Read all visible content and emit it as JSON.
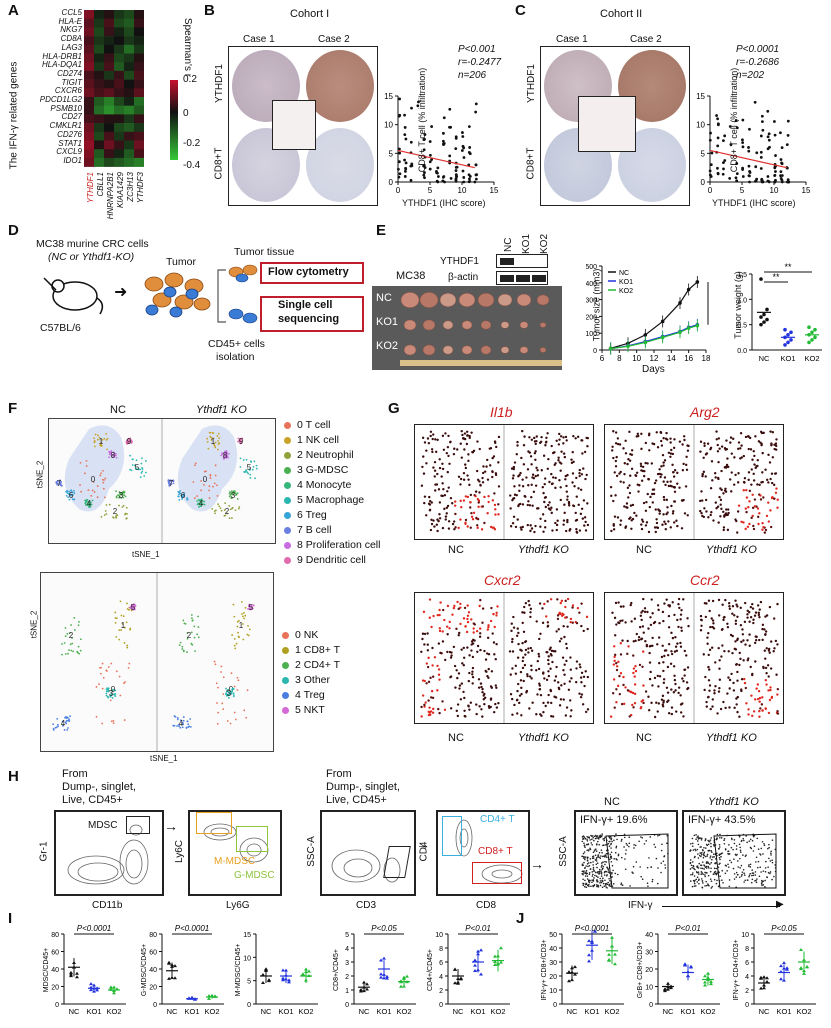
{
  "panels": {
    "A": "A",
    "B": "B",
    "C": "C",
    "D": "D",
    "E": "E",
    "F": "F",
    "G": "G",
    "H": "H",
    "I": "I",
    "J": "J"
  },
  "panelA": {
    "ylabel": "The IFN-γ related genes",
    "genes": [
      "CCL5",
      "HLA-E",
      "NKG7",
      "CD8A",
      "LAG3",
      "HLA-DRB1",
      "HLA-DQA1",
      "CD274",
      "TIGIT",
      "CXCR6",
      "PDCD1LG2",
      "PSMB10",
      "CD27",
      "CMKLR1",
      "CD276",
      "STAT1",
      "CXCL9",
      "IDO1"
    ],
    "columns": [
      "YTHDF1",
      "CBLL1",
      "HNRNPA2B1",
      "KIAA1429",
      "ZC3H13",
      "YTHDF3"
    ],
    "colorbar_title": "Spearman's r",
    "colorbar_ticks": [
      "0.2",
      "0",
      "-0.2",
      "-0.4"
    ],
    "colors": {
      "pos": "#c8102e",
      "neg": "#37c837",
      "mid": "#111111"
    }
  },
  "panelB": {
    "title": "Cohort I",
    "case1": "Case 1",
    "case2": "Case 2",
    "row1": "YTHDF1",
    "row2": "CD8+T",
    "stats": [
      "P<0.001",
      "r=-0.2477",
      "n=206"
    ],
    "xlabel": "YTHDF1 (IHC score)",
    "ylabel": "CD8+ T cell (% infiltration)",
    "xticks": [
      "0",
      "5",
      "10",
      "15"
    ],
    "yticks": [
      "0",
      "5",
      "10",
      "15"
    ]
  },
  "panelC": {
    "title": "Cohort II",
    "case1": "Case 1",
    "case2": "Case 2",
    "row1": "YTHDF1",
    "row2": "CD8+T",
    "stats": [
      "P<0.0001",
      "r=-0.2686",
      "n=202"
    ],
    "xlabel": "YTHDF1 (IHC score)",
    "ylabel": "CD8+ T cell (% infiltration)",
    "xticks": [
      "0",
      "5",
      "10",
      "15"
    ],
    "yticks": [
      "0",
      "5",
      "10",
      "15"
    ]
  },
  "panelD": {
    "cells": "MC38 murine CRC cells",
    "cells2": "(NC or Ythdf1-KO)",
    "mouse": "C57BL/6",
    "tumor": "Tumor",
    "tissue": "Tumor tissue",
    "flow": "Flow cytometry",
    "sc1": "Single cell",
    "sc2": "sequencing",
    "iso1": "CD45+ cells",
    "iso2": "isolation"
  },
  "panelE": {
    "wb_labels": [
      "NC",
      "KO1",
      "KO2"
    ],
    "wb_rows": [
      "YTHDF1",
      "β-actin"
    ],
    "model": "MC38",
    "groups": [
      "NC",
      "KO1",
      "KO2"
    ],
    "size_ylabel": "Tumor size (mm3)",
    "size_xlabel": "Days",
    "size_xticks": [
      "6",
      "8",
      "10",
      "12",
      "14",
      "16",
      "18"
    ],
    "size_yticks": [
      "0",
      "100",
      "200",
      "300",
      "400",
      "500"
    ],
    "legend": [
      "NC",
      "KO1",
      "KO2"
    ],
    "sig": "****",
    "weight_ylabel": "Tumor weight (g)",
    "weight_yticks": [
      "0.0",
      "0.5",
      "1.0",
      "1.5"
    ],
    "weight_sig": [
      "**",
      "**"
    ],
    "weight_x": [
      "NC",
      "KO1",
      "KO2"
    ]
  },
  "chart_data": [
    {
      "type": "line",
      "title": "",
      "xlabel": "Days",
      "ylabel": "Tumor size (mm3)",
      "x": [
        7,
        9,
        11,
        13,
        15,
        16,
        17
      ],
      "xlim": [
        6,
        18
      ],
      "ylim": [
        0,
        500
      ],
      "series": [
        {
          "name": "NC",
          "values": [
            10,
            40,
            90,
            170,
            280,
            360,
            405
          ],
          "color": "#111111"
        },
        {
          "name": "KO1",
          "values": [
            8,
            25,
            50,
            80,
            110,
            135,
            150
          ],
          "color": "#2233dd"
        },
        {
          "name": "KO2",
          "values": [
            8,
            22,
            45,
            75,
            105,
            130,
            145
          ],
          "color": "#22bb33"
        }
      ]
    },
    {
      "type": "scatter",
      "title": "",
      "ylabel": "Tumor weight (g)",
      "categories": [
        "NC",
        "KO1",
        "KO2"
      ],
      "ylim": [
        0,
        1.5
      ],
      "series": [
        {
          "name": "NC",
          "values": [
            0.5,
            0.55,
            0.6,
            0.65,
            0.7,
            0.8,
            1.4
          ]
        },
        {
          "name": "KO1",
          "values": [
            0.1,
            0.15,
            0.2,
            0.25,
            0.3,
            0.35,
            0.4
          ]
        },
        {
          "name": "KO2",
          "values": [
            0.15,
            0.2,
            0.25,
            0.3,
            0.35,
            0.4,
            0.45
          ]
        }
      ]
    }
  ],
  "panelF": {
    "nc": "NC",
    "ko": "Ythdf1 KO",
    "xlabel": "tSNE_1",
    "ylabel": "tSNE_2",
    "clusters": [
      {
        "id": "0",
        "name": "T cell",
        "color": "#e8735a"
      },
      {
        "id": "1",
        "name": "NK cell",
        "color": "#c9a227"
      },
      {
        "id": "2",
        "name": "Neutrophil",
        "color": "#8fa33a"
      },
      {
        "id": "3",
        "name": "G-MDSC",
        "color": "#4caf50"
      },
      {
        "id": "4",
        "name": "Monocyte",
        "color": "#35b57a"
      },
      {
        "id": "5",
        "name": "Macrophage",
        "color": "#2bb7b0"
      },
      {
        "id": "6",
        "name": "Treg",
        "color": "#36a4d6"
      },
      {
        "id": "7",
        "name": "B cell",
        "color": "#6b7fe0"
      },
      {
        "id": "8",
        "name": "Proliferation cell",
        "color": "#c86de0"
      },
      {
        "id": "9",
        "name": "Dendritic cell",
        "color": "#e26bb0"
      }
    ],
    "sub_clusters": [
      {
        "id": "0",
        "name": "NK",
        "color": "#e8735a"
      },
      {
        "id": "1",
        "name": "CD8+ T",
        "color": "#b0a020"
      },
      {
        "id": "2",
        "name": "CD4+ T",
        "color": "#4caf50"
      },
      {
        "id": "3",
        "name": "Other",
        "color": "#2bb7b0"
      },
      {
        "id": "4",
        "name": "Treg",
        "color": "#4a7fe0"
      },
      {
        "id": "5",
        "name": "NKT",
        "color": "#d46ad6"
      }
    ]
  },
  "panelG": {
    "genes": [
      "Il1b",
      "Arg2",
      "Cxcr2",
      "Ccr2"
    ],
    "nc": "NC",
    "ko": "Ythdf1 KO"
  },
  "panelH": {
    "from": "From",
    "dump": "Dump-, singlet,",
    "live": "Live, CD45+",
    "mdsc": "MDSC",
    "mmdsc": "M-MDSC",
    "gmdsc": "G-MDSC",
    "x1": "CD11b",
    "y1": "Gr-1",
    "x2": "Ly6G",
    "y2": "Ly6C",
    "x3": "CD3",
    "y3": "SSC-A",
    "x4": "CD8",
    "y4": "CD4",
    "cd4": "CD4+ T",
    "cd8": "CD8+ T",
    "nc": "NC",
    "ko": "Ythdf1 KO",
    "ifn_nc": "IFN-γ+   19.6%",
    "ifn_ko": "IFN-γ+  43.5%",
    "y5": "SSC-A",
    "x5": "IFN-γ"
  },
  "panelI": [
    {
      "ylabel": "MDSC/CD45+",
      "p": "P<0.0001",
      "yticks": [
        "0",
        "20",
        "40",
        "60",
        "80"
      ]
    },
    {
      "ylabel": "G-MDSC/CD45+",
      "p": "P<0.0001",
      "yticks": [
        "0",
        "20",
        "40",
        "60",
        "80"
      ]
    },
    {
      "ylabel": "M-MDSC/CD45+",
      "p": "",
      "yticks": [
        "0",
        "5",
        "10",
        "15"
      ]
    },
    {
      "ylabel": "CD8+/CD45+",
      "p": "P<0.05",
      "yticks": [
        "0",
        "1",
        "2",
        "3",
        "4",
        "5"
      ]
    },
    {
      "ylabel": "CD4+/CD45+",
      "p": "P<0.01",
      "yticks": [
        "0",
        "2",
        "4",
        "6",
        "8",
        "10"
      ]
    }
  ],
  "panelJ": [
    {
      "ylabel": "IFN-γ+ CD8+/CD3+",
      "p": "P<0.0001",
      "yticks": [
        "0",
        "10",
        "20",
        "30",
        "40",
        "50"
      ]
    },
    {
      "ylabel": "GrB+ CD8+/CD3+",
      "p": "P<0.01",
      "yticks": [
        "0",
        "10",
        "20",
        "30",
        "40"
      ]
    },
    {
      "ylabel": "IFN-γ+ CD4+/CD3+",
      "p": "P<0.05",
      "yticks": [
        "0",
        "2",
        "4",
        "6",
        "8",
        "10"
      ]
    }
  ],
  "dot_x": [
    "NC",
    "KO1",
    "KO2"
  ]
}
